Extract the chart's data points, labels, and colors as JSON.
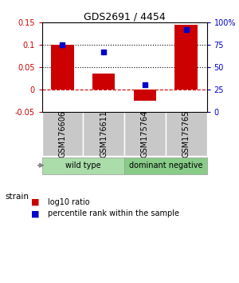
{
  "title": "GDS2691 / 4454",
  "samples": [
    "GSM176606",
    "GSM176611",
    "GSM175764",
    "GSM175765"
  ],
  "log10_ratio": [
    0.1,
    0.035,
    -0.025,
    0.145
  ],
  "percentile_rank": [
    75.5,
    67.0,
    30.0,
    92.0
  ],
  "bar_color": "#cc0000",
  "square_color": "#0000cc",
  "ylim_left": [
    -0.05,
    0.15
  ],
  "ylim_right": [
    0,
    100
  ],
  "yticks_left": [
    -0.05,
    0,
    0.05,
    0.1,
    0.15
  ],
  "yticks_right": [
    0,
    25,
    50,
    75,
    100
  ],
  "ytick_labels_left": [
    "-0.05",
    "0",
    "0.05",
    "0.1",
    "0.15"
  ],
  "ytick_labels_right": [
    "0",
    "25",
    "50",
    "75",
    "100%"
  ],
  "hlines": [
    0.05,
    0.1
  ],
  "hline_zero_color": "#cc0000",
  "hline_dotted_color": "#000000",
  "groups": [
    {
      "label": "wild type",
      "samples": [
        0,
        1
      ],
      "color": "#aaddaa"
    },
    {
      "label": "dominant negative",
      "samples": [
        2,
        3
      ],
      "color": "#88cc88"
    }
  ],
  "strain_label": "strain",
  "legend_items": [
    {
      "color": "#cc0000",
      "label": "log10 ratio"
    },
    {
      "color": "#0000cc",
      "label": "percentile rank within the sample"
    }
  ],
  "bg_color": "#ffffff",
  "plot_bg_color": "#ffffff",
  "sample_box_color": "#c8c8c8",
  "bar_width": 0.55
}
